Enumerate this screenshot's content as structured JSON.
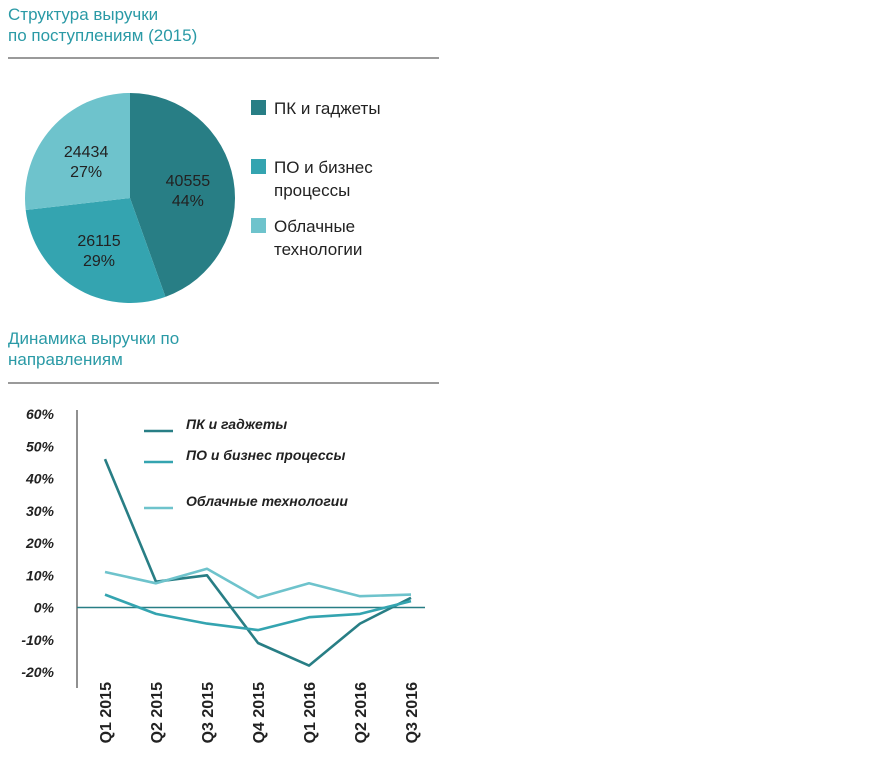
{
  "colors": {
    "title": "#2a9aa6",
    "pc": "#287e85",
    "software": "#34a4b0",
    "cloud": "#6ec3cc"
  },
  "section1": {
    "line1": "Структура выручки",
    "line2": "по поступлениям (2015)"
  },
  "section2": {
    "line1": "Динамика выручки по",
    "line2": "направлениям"
  },
  "chart_data": [
    {
      "type": "pie",
      "title": "Структура выручки по поступлениям (2015)",
      "slices": [
        {
          "name": "ПК и гаджеты",
          "legend_lines": [
            "ПК и гаджеты"
          ],
          "value": 40555,
          "percent": "44%",
          "color": "#287e85"
        },
        {
          "name": "ПО и бизнес процессы",
          "legend_lines": [
            "ПО и бизнес",
            "процессы"
          ],
          "value": 26115,
          "percent": "29%",
          "color": "#34a4b0"
        },
        {
          "name": "Облачные технологии",
          "legend_lines": [
            "Облачные",
            "технологии"
          ],
          "value": 24434,
          "percent": "27%",
          "color": "#6ec3cc"
        }
      ],
      "legend_position": "right"
    },
    {
      "type": "line",
      "title": "Динамика выручки по направлениям",
      "categories": [
        "Q1 2015",
        "Q2 2015",
        "Q3 2015",
        "Q4 2015",
        "Q1 2016",
        "Q2 2016",
        "Q3 2016"
      ],
      "series": [
        {
          "name": "ПК и гаджеты",
          "color": "#287e85",
          "values": [
            46,
            8,
            10,
            -11,
            -18,
            -5,
            3
          ]
        },
        {
          "name": "ПО и бизнес процессы",
          "color": "#34a4b0",
          "values": [
            4,
            -2,
            -5,
            -7,
            -3,
            -2,
            2
          ]
        },
        {
          "name": "Облачные технологии",
          "color": "#6ec3cc",
          "values": [
            11,
            7.5,
            12,
            3,
            7.5,
            3.5,
            4
          ]
        }
      ],
      "yticks": [
        60,
        50,
        40,
        30,
        20,
        10,
        0,
        -10,
        -20
      ],
      "ytick_labels": [
        "60%",
        "50%",
        "40%",
        "30%",
        "20%",
        "10%",
        "0%",
        "-10%",
        "-20%"
      ],
      "ylim": [
        -20,
        60
      ],
      "grid": false,
      "legend_position": "top-right"
    }
  ]
}
